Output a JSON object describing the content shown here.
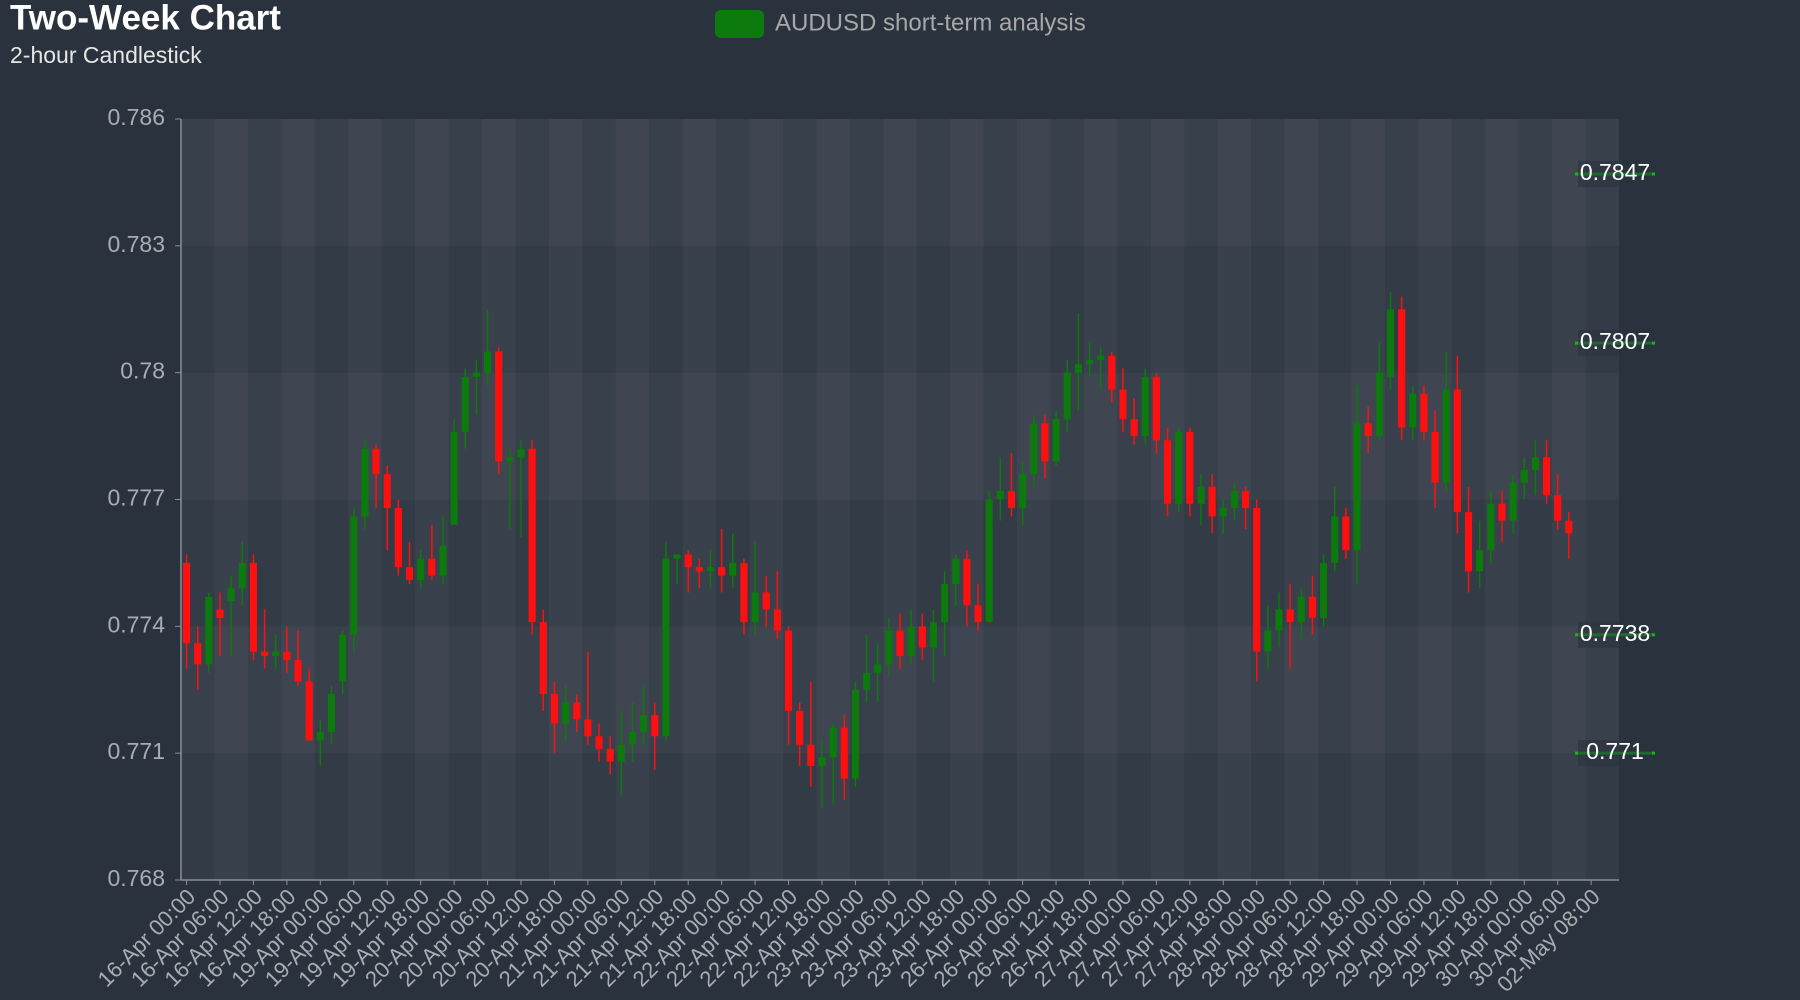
{
  "chart_data": {
    "type": "candlestick",
    "title": "Two-Week Chart",
    "subtitle": "2-hour Candlestick",
    "series_name": "AUDUSD short-term analysis",
    "up_color": "#0c7a0c",
    "down_color": "#ff1010",
    "level_color": "#12b812",
    "ylim": [
      0.768,
      0.786
    ],
    "yticks": [
      0.768,
      0.771,
      0.774,
      0.777,
      0.78,
      0.783,
      0.786
    ],
    "levels": [
      0.7847,
      0.7807,
      0.7738,
      0.771
    ],
    "categories": [
      "16-Apr 00:00",
      null,
      null,
      "16-Apr 06:00",
      null,
      null,
      "16-Apr 12:00",
      null,
      null,
      "16-Apr 18:00",
      null,
      null,
      "19-Apr 00:00",
      null,
      null,
      "19-Apr 06:00",
      null,
      null,
      "19-Apr 12:00",
      null,
      null,
      "19-Apr 18:00",
      null,
      null,
      "20-Apr 00:00",
      null,
      null,
      "20-Apr 06:00",
      null,
      null,
      "20-Apr 12:00",
      null,
      null,
      "20-Apr 18:00",
      null,
      null,
      "21-Apr 00:00",
      null,
      null,
      "21-Apr 06:00",
      null,
      null,
      "21-Apr 12:00",
      null,
      null,
      "21-Apr 18:00",
      null,
      null,
      "22-Apr 00:00",
      null,
      null,
      "22-Apr 06:00",
      null,
      null,
      "22-Apr 12:00",
      null,
      null,
      "22-Apr 18:00",
      null,
      null,
      "23-Apr 00:00",
      null,
      null,
      "23-Apr 06:00",
      null,
      null,
      "23-Apr 12:00",
      null,
      null,
      "23-Apr 18:00",
      null,
      null,
      "26-Apr 00:00",
      null,
      null,
      "26-Apr 06:00",
      null,
      null,
      "26-Apr 12:00",
      null,
      null,
      "26-Apr 18:00",
      null,
      null,
      "27-Apr 00:00",
      null,
      null,
      "27-Apr 06:00",
      null,
      null,
      "27-Apr 12:00",
      null,
      null,
      "27-Apr 18:00",
      null,
      null,
      "28-Apr 00:00",
      null,
      null,
      "28-Apr 06:00",
      null,
      null,
      "28-Apr 12:00",
      null,
      null,
      "28-Apr 18:00",
      null,
      null,
      "29-Apr 00:00",
      null,
      null,
      "29-Apr 06:00",
      null,
      null,
      "29-Apr 12:00",
      null,
      null,
      "29-Apr 18:00",
      null,
      null,
      "30-Apr 00:00",
      null,
      null,
      "30-Apr 06:00",
      null,
      null,
      "02-May 08:00",
      null,
      null
    ],
    "ohlc": [
      [
        0.7755,
        0.7757,
        0.773,
        0.7736
      ],
      [
        0.7736,
        0.774,
        0.7725,
        0.7731
      ],
      [
        0.7731,
        0.7748,
        0.7729,
        0.7747
      ],
      [
        0.7744,
        0.7748,
        0.7733,
        0.7742
      ],
      [
        0.7746,
        0.7752,
        0.7733,
        0.7749
      ],
      [
        0.7749,
        0.776,
        0.7745,
        0.7755
      ],
      [
        0.7755,
        0.7757,
        0.7732,
        0.7734
      ],
      [
        0.7734,
        0.7744,
        0.773,
        0.7733
      ],
      [
        0.7733,
        0.7738,
        0.773,
        0.7734
      ],
      [
        0.7734,
        0.774,
        0.7729,
        0.7732
      ],
      [
        0.7732,
        0.7739,
        0.7726,
        0.7727
      ],
      [
        0.7727,
        0.773,
        0.7713,
        0.7713
      ],
      [
        0.7713,
        0.7718,
        0.7707,
        0.7715
      ],
      [
        0.7715,
        0.7726,
        0.7712,
        0.7724
      ],
      [
        0.7727,
        0.7739,
        0.7724,
        0.7738
      ],
      [
        0.7738,
        0.7768,
        0.7734,
        0.7766
      ],
      [
        0.7766,
        0.7784,
        0.7763,
        0.7782
      ],
      [
        0.7782,
        0.7783,
        0.7768,
        0.7776
      ],
      [
        0.7776,
        0.7778,
        0.7758,
        0.7768
      ],
      [
        0.7768,
        0.777,
        0.7752,
        0.7754
      ],
      [
        0.7754,
        0.776,
        0.775,
        0.7751
      ],
      [
        0.7751,
        0.7758,
        0.7749,
        0.7756
      ],
      [
        0.7756,
        0.7764,
        0.7751,
        0.7752
      ],
      [
        0.7752,
        0.7766,
        0.775,
        0.7759
      ],
      [
        0.7764,
        0.7789,
        0.7764,
        0.7786
      ],
      [
        0.7786,
        0.7801,
        0.7782,
        0.7799
      ],
      [
        0.7799,
        0.7803,
        0.779,
        0.78
      ],
      [
        0.78,
        0.7815,
        0.7797,
        0.7805
      ],
      [
        0.7805,
        0.7806,
        0.7776,
        0.7779
      ],
      [
        0.7779,
        0.7782,
        0.7763,
        0.778
      ],
      [
        0.778,
        0.7784,
        0.7761,
        0.7782
      ],
      [
        0.7782,
        0.7784,
        0.7738,
        0.7741
      ],
      [
        0.7741,
        0.7744,
        0.772,
        0.7724
      ],
      [
        0.7724,
        0.7727,
        0.771,
        0.7717
      ],
      [
        0.7717,
        0.7726,
        0.7713,
        0.7722
      ],
      [
        0.7722,
        0.7724,
        0.7715,
        0.7718
      ],
      [
        0.7718,
        0.7734,
        0.7712,
        0.7714
      ],
      [
        0.7714,
        0.7717,
        0.7708,
        0.7711
      ],
      [
        0.7711,
        0.7714,
        0.7705,
        0.7708
      ],
      [
        0.7708,
        0.772,
        0.77,
        0.7712
      ],
      [
        0.7712,
        0.7722,
        0.7708,
        0.7715
      ],
      [
        0.7715,
        0.7726,
        0.7712,
        0.7719
      ],
      [
        0.7719,
        0.7722,
        0.7706,
        0.7714
      ],
      [
        0.7714,
        0.776,
        0.7713,
        0.7756
      ],
      [
        0.7756,
        0.7757,
        0.775,
        0.7757
      ],
      [
        0.7757,
        0.7758,
        0.7748,
        0.7754
      ],
      [
        0.7754,
        0.7756,
        0.7749,
        0.7753
      ],
      [
        0.7753,
        0.7758,
        0.7749,
        0.7754
      ],
      [
        0.7754,
        0.7763,
        0.7748,
        0.7752
      ],
      [
        0.7752,
        0.7762,
        0.7749,
        0.7755
      ],
      [
        0.7755,
        0.7756,
        0.7738,
        0.7741
      ],
      [
        0.7741,
        0.776,
        0.7738,
        0.7748
      ],
      [
        0.7748,
        0.7752,
        0.774,
        0.7744
      ],
      [
        0.7744,
        0.7753,
        0.7737,
        0.7739
      ],
      [
        0.7739,
        0.774,
        0.7712,
        0.772
      ],
      [
        0.772,
        0.7722,
        0.7707,
        0.7712
      ],
      [
        0.7712,
        0.7727,
        0.7702,
        0.7707
      ],
      [
        0.7707,
        0.7713,
        0.7697,
        0.7709
      ],
      [
        0.7709,
        0.7717,
        0.7698,
        0.7716
      ],
      [
        0.7716,
        0.7719,
        0.7699,
        0.7704
      ],
      [
        0.7704,
        0.7727,
        0.7702,
        0.7725
      ],
      [
        0.7725,
        0.7738,
        0.7722,
        0.7729
      ],
      [
        0.7729,
        0.7736,
        0.7722,
        0.7731
      ],
      [
        0.7731,
        0.7742,
        0.7728,
        0.7739
      ],
      [
        0.7739,
        0.7743,
        0.773,
        0.7733
      ],
      [
        0.7733,
        0.7744,
        0.7731,
        0.774
      ],
      [
        0.774,
        0.7743,
        0.7732,
        0.7735
      ],
      [
        0.7735,
        0.7744,
        0.7727,
        0.7741
      ],
      [
        0.7741,
        0.7753,
        0.7733,
        0.775
      ],
      [
        0.775,
        0.7757,
        0.7745,
        0.7756
      ],
      [
        0.7756,
        0.7758,
        0.774,
        0.7745
      ],
      [
        0.7745,
        0.775,
        0.7739,
        0.7741
      ],
      [
        0.7741,
        0.7772,
        0.7741,
        0.777
      ],
      [
        0.777,
        0.778,
        0.7765,
        0.7772
      ],
      [
        0.7772,
        0.7781,
        0.7766,
        0.7768
      ],
      [
        0.7768,
        0.7779,
        0.7764,
        0.7776
      ],
      [
        0.7776,
        0.779,
        0.7773,
        0.7788
      ],
      [
        0.7788,
        0.779,
        0.7775,
        0.7779
      ],
      [
        0.7779,
        0.7791,
        0.7778,
        0.7789
      ],
      [
        0.7789,
        0.7803,
        0.7786,
        0.78
      ],
      [
        0.78,
        0.7814,
        0.7791,
        0.7802
      ],
      [
        0.7802,
        0.7807,
        0.7799,
        0.7803
      ],
      [
        0.7803,
        0.7806,
        0.7796,
        0.7804
      ],
      [
        0.7804,
        0.7805,
        0.7793,
        0.7796
      ],
      [
        0.7796,
        0.7801,
        0.7786,
        0.7789
      ],
      [
        0.7789,
        0.7794,
        0.7783,
        0.7785
      ],
      [
        0.7785,
        0.7801,
        0.7783,
        0.7799
      ],
      [
        0.7799,
        0.78,
        0.7781,
        0.7784
      ],
      [
        0.7784,
        0.7787,
        0.7766,
        0.7769
      ],
      [
        0.7769,
        0.7787,
        0.7767,
        0.7786
      ],
      [
        0.7786,
        0.7787,
        0.7766,
        0.7769
      ],
      [
        0.7769,
        0.7776,
        0.7764,
        0.7773
      ],
      [
        0.7773,
        0.7776,
        0.7762,
        0.7766
      ],
      [
        0.7766,
        0.777,
        0.7762,
        0.7768
      ],
      [
        0.7768,
        0.7774,
        0.7765,
        0.7772
      ],
      [
        0.7772,
        0.7773,
        0.7763,
        0.7768
      ],
      [
        0.7768,
        0.777,
        0.7727,
        0.7734
      ],
      [
        0.7734,
        0.7745,
        0.773,
        0.7739
      ],
      [
        0.7739,
        0.7748,
        0.7735,
        0.7744
      ],
      [
        0.7744,
        0.775,
        0.773,
        0.7741
      ],
      [
        0.7741,
        0.7749,
        0.7737,
        0.7747
      ],
      [
        0.7747,
        0.7752,
        0.7738,
        0.7742
      ],
      [
        0.7742,
        0.7757,
        0.774,
        0.7755
      ],
      [
        0.7755,
        0.7773,
        0.7753,
        0.7766
      ],
      [
        0.7766,
        0.7768,
        0.7756,
        0.7758
      ],
      [
        0.7758,
        0.7797,
        0.775,
        0.7788
      ],
      [
        0.7788,
        0.7792,
        0.7781,
        0.7785
      ],
      [
        0.7785,
        0.7807,
        0.7784,
        0.78
      ],
      [
        0.7799,
        0.7819,
        0.7796,
        0.7815
      ],
      [
        0.7815,
        0.7818,
        0.7784,
        0.7787
      ],
      [
        0.7787,
        0.7797,
        0.7784,
        0.7795
      ],
      [
        0.7795,
        0.7797,
        0.7784,
        0.7786
      ],
      [
        0.7786,
        0.7791,
        0.7768,
        0.7774
      ],
      [
        0.7774,
        0.7805,
        0.7772,
        0.7796
      ],
      [
        0.7796,
        0.7804,
        0.7762,
        0.7767
      ],
      [
        0.7767,
        0.7773,
        0.7748,
        0.7753
      ],
      [
        0.7753,
        0.7765,
        0.7749,
        0.7758
      ],
      [
        0.7758,
        0.7772,
        0.7755,
        0.7769
      ],
      [
        0.7769,
        0.7772,
        0.776,
        0.7765
      ],
      [
        0.7765,
        0.7776,
        0.7762,
        0.7774
      ],
      [
        0.7774,
        0.778,
        0.777,
        0.7777
      ],
      [
        0.7777,
        0.7784,
        0.7771,
        0.778
      ],
      [
        0.778,
        0.7784,
        0.7769,
        0.7771
      ],
      [
        0.7771,
        0.7776,
        0.7763,
        0.7765
      ],
      [
        0.7765,
        0.7767,
        0.7756,
        0.7762
      ],
      null,
      null,
      null,
      null
    ]
  }
}
